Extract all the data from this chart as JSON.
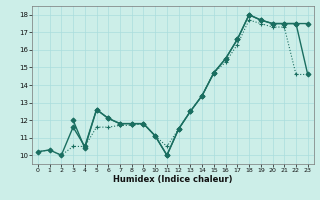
{
  "title": "",
  "xlabel": "Humidex (Indice chaleur)",
  "xlim": [
    -0.5,
    23.5
  ],
  "ylim": [
    9.5,
    18.5
  ],
  "xticks": [
    0,
    1,
    2,
    3,
    4,
    5,
    6,
    7,
    8,
    9,
    10,
    11,
    12,
    13,
    14,
    15,
    16,
    17,
    18,
    19,
    20,
    21,
    22,
    23
  ],
  "yticks": [
    10,
    11,
    12,
    13,
    14,
    15,
    16,
    17,
    18
  ],
  "bg_color": "#cceee8",
  "grid_color": "#aadddd",
  "line_color": "#1a6e60",
  "series": [
    {
      "x": [
        0,
        1,
        2,
        3,
        4,
        5,
        6,
        7,
        8,
        9,
        10,
        11,
        12,
        13,
        14,
        15,
        16,
        17,
        18,
        19,
        20,
        21,
        22,
        23
      ],
      "y": [
        10.2,
        10.3,
        10.0,
        11.6,
        10.5,
        12.6,
        12.1,
        11.8,
        11.8,
        11.8,
        11.1,
        10.0,
        11.5,
        12.5,
        13.4,
        14.7,
        15.5,
        16.6,
        18.0,
        17.7,
        17.5,
        17.5,
        17.5,
        17.5
      ],
      "style": "-",
      "marker": "D",
      "markersize": 2.5,
      "linewidth": 1.0
    },
    {
      "x": [
        3,
        4,
        5,
        6,
        7,
        8,
        9,
        10,
        11,
        12,
        13,
        14,
        15,
        16,
        17,
        18,
        19,
        20,
        21,
        22,
        23
      ],
      "y": [
        12.0,
        10.4,
        12.6,
        12.1,
        11.8,
        11.8,
        11.8,
        11.1,
        10.0,
        11.5,
        12.5,
        13.4,
        14.7,
        15.5,
        16.6,
        18.0,
        17.7,
        17.5,
        17.5,
        17.5,
        14.6
      ],
      "style": "-",
      "marker": "D",
      "markersize": 2.5,
      "linewidth": 1.0
    },
    {
      "x": [
        0,
        1,
        2,
        3,
        4,
        5,
        6,
        7,
        8,
        9,
        10,
        11,
        12,
        13,
        14,
        15,
        16,
        17,
        18,
        19,
        20,
        21,
        22,
        23
      ],
      "y": [
        10.2,
        10.3,
        10.0,
        10.5,
        10.5,
        11.6,
        11.6,
        11.7,
        11.7,
        11.8,
        11.1,
        10.5,
        11.5,
        12.5,
        13.4,
        14.7,
        15.3,
        16.3,
        17.7,
        17.5,
        17.3,
        17.3,
        14.6,
        14.6
      ],
      "style": ":",
      "marker": "+",
      "markersize": 3,
      "linewidth": 0.8
    }
  ]
}
